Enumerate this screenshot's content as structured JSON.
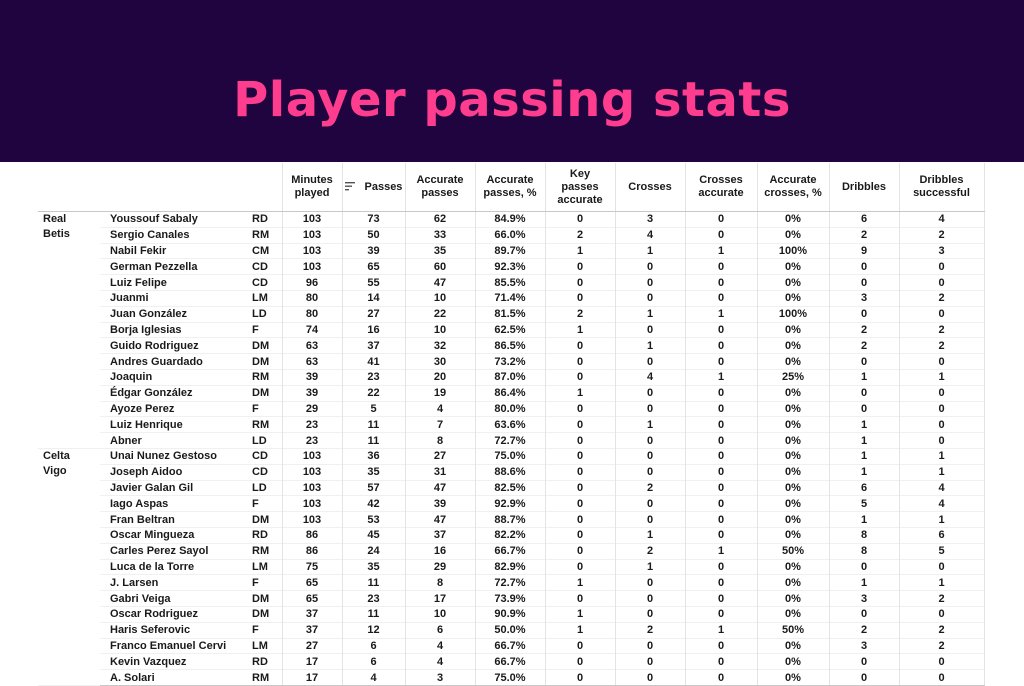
{
  "title": "Player passing stats",
  "columns": {
    "minutes": [
      "Minutes",
      "played"
    ],
    "passes": "Passes",
    "accurate_passes": [
      "Accurate",
      "passes"
    ],
    "accurate_passes_pct": [
      "Accurate",
      "passes, %"
    ],
    "key_passes": [
      "Key",
      "passes",
      "accurate"
    ],
    "crosses": "Crosses",
    "crosses_accurate": [
      "Crosses",
      "accurate"
    ],
    "accurate_crosses_pct": [
      "Accurate",
      "crosses, %"
    ],
    "dribbles": "Dribbles",
    "dribbles_successful": [
      "Dribbles",
      "successful"
    ]
  },
  "sort_icon": "sort-descending-icon",
  "colors": {
    "banner": "#1f0440",
    "title": "#ff3d8e"
  },
  "teams": [
    {
      "name": [
        "Real",
        "Betis"
      ],
      "players": [
        [
          "Youssouf Sabaly",
          "RD",
          "103",
          "73",
          "62",
          "84.9%",
          "0",
          "3",
          "0",
          "0%",
          "6",
          "4"
        ],
        [
          "Sergio Canales",
          "RM",
          "103",
          "50",
          "33",
          "66.0%",
          "2",
          "4",
          "0",
          "0%",
          "2",
          "2"
        ],
        [
          "Nabil Fekir",
          "CM",
          "103",
          "39",
          "35",
          "89.7%",
          "1",
          "1",
          "1",
          "100%",
          "9",
          "3"
        ],
        [
          "German Pezzella",
          "CD",
          "103",
          "65",
          "60",
          "92.3%",
          "0",
          "0",
          "0",
          "0%",
          "0",
          "0"
        ],
        [
          "Luiz Felipe",
          "CD",
          "96",
          "55",
          "47",
          "85.5%",
          "0",
          "0",
          "0",
          "0%",
          "0",
          "0"
        ],
        [
          "Juanmi",
          "LM",
          "80",
          "14",
          "10",
          "71.4%",
          "0",
          "0",
          "0",
          "0%",
          "3",
          "2"
        ],
        [
          "Juan González",
          "LD",
          "80",
          "27",
          "22",
          "81.5%",
          "2",
          "1",
          "1",
          "100%",
          "0",
          "0"
        ],
        [
          "Borja Iglesias",
          "F",
          "74",
          "16",
          "10",
          "62.5%",
          "1",
          "0",
          "0",
          "0%",
          "2",
          "2"
        ],
        [
          "Guido Rodriguez",
          "DM",
          "63",
          "37",
          "32",
          "86.5%",
          "0",
          "1",
          "0",
          "0%",
          "2",
          "2"
        ],
        [
          "Andres Guardado",
          "DM",
          "63",
          "41",
          "30",
          "73.2%",
          "0",
          "0",
          "0",
          "0%",
          "0",
          "0"
        ],
        [
          "Joaquin",
          "RM",
          "39",
          "23",
          "20",
          "87.0%",
          "0",
          "4",
          "1",
          "25%",
          "1",
          "1"
        ],
        [
          "Édgar González",
          "DM",
          "39",
          "22",
          "19",
          "86.4%",
          "1",
          "0",
          "0",
          "0%",
          "0",
          "0"
        ],
        [
          "Ayoze Perez",
          "F",
          "29",
          "5",
          "4",
          "80.0%",
          "0",
          "0",
          "0",
          "0%",
          "0",
          "0"
        ],
        [
          "Luiz Henrique",
          "RM",
          "23",
          "11",
          "7",
          "63.6%",
          "0",
          "1",
          "0",
          "0%",
          "1",
          "0"
        ],
        [
          "Abner",
          "LD",
          "23",
          "11",
          "8",
          "72.7%",
          "0",
          "0",
          "0",
          "0%",
          "1",
          "0"
        ]
      ]
    },
    {
      "name": [
        "Celta",
        "Vigo"
      ],
      "players": [
        [
          "Unai Nunez Gestoso",
          "CD",
          "103",
          "36",
          "27",
          "75.0%",
          "0",
          "0",
          "0",
          "0%",
          "1",
          "1"
        ],
        [
          "Joseph Aidoo",
          "CD",
          "103",
          "35",
          "31",
          "88.6%",
          "0",
          "0",
          "0",
          "0%",
          "1",
          "1"
        ],
        [
          "Javier Galan Gil",
          "LD",
          "103",
          "57",
          "47",
          "82.5%",
          "0",
          "2",
          "0",
          "0%",
          "6",
          "4"
        ],
        [
          "Iago Aspas",
          "F",
          "103",
          "42",
          "39",
          "92.9%",
          "0",
          "0",
          "0",
          "0%",
          "5",
          "4"
        ],
        [
          "Fran Beltran",
          "DM",
          "103",
          "53",
          "47",
          "88.7%",
          "0",
          "0",
          "0",
          "0%",
          "1",
          "1"
        ],
        [
          "Oscar Mingueza",
          "RD",
          "86",
          "45",
          "37",
          "82.2%",
          "0",
          "1",
          "0",
          "0%",
          "8",
          "6"
        ],
        [
          "Carles Perez Sayol",
          "RM",
          "86",
          "24",
          "16",
          "66.7%",
          "0",
          "2",
          "1",
          "50%",
          "8",
          "5"
        ],
        [
          "Luca de la Torre",
          "LM",
          "75",
          "35",
          "29",
          "82.9%",
          "0",
          "1",
          "0",
          "0%",
          "0",
          "0"
        ],
        [
          "J. Larsen",
          "F",
          "65",
          "11",
          "8",
          "72.7%",
          "1",
          "0",
          "0",
          "0%",
          "1",
          "1"
        ],
        [
          "Gabri Veiga",
          "DM",
          "65",
          "23",
          "17",
          "73.9%",
          "0",
          "0",
          "0",
          "0%",
          "3",
          "2"
        ],
        [
          "Oscar Rodriguez",
          "DM",
          "37",
          "11",
          "10",
          "90.9%",
          "1",
          "0",
          "0",
          "0%",
          "0",
          "0"
        ],
        [
          "Haris Seferovic",
          "F",
          "37",
          "12",
          "6",
          "50.0%",
          "1",
          "2",
          "1",
          "50%",
          "2",
          "2"
        ],
        [
          "Franco Emanuel Cervi",
          "LM",
          "27",
          "6",
          "4",
          "66.7%",
          "0",
          "0",
          "0",
          "0%",
          "3",
          "2"
        ],
        [
          "Kevin Vazquez",
          "RD",
          "17",
          "6",
          "4",
          "66.7%",
          "0",
          "0",
          "0",
          "0%",
          "0",
          "0"
        ],
        [
          "A. Solari",
          "RM",
          "17",
          "4",
          "3",
          "75.0%",
          "0",
          "0",
          "0",
          "0%",
          "0",
          "0"
        ]
      ]
    }
  ]
}
